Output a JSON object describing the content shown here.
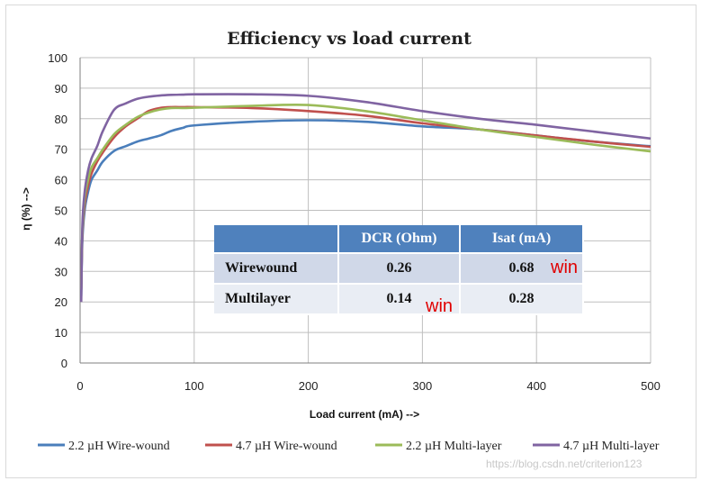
{
  "chart_data": {
    "type": "line",
    "title": "Efficiency vs load current",
    "xlabel": "Load current (mA) -->",
    "ylabel": "η (%) -->",
    "xlim": [
      0,
      500
    ],
    "ylim": [
      0,
      100
    ],
    "xticks": [
      0,
      100,
      200,
      300,
      400,
      500
    ],
    "yticks": [
      0,
      10,
      20,
      30,
      40,
      50,
      60,
      70,
      80,
      90,
      100
    ],
    "grid": true,
    "legend_position": "bottom",
    "series": [
      {
        "name": "2.2 µH Wire-wound",
        "color": "#4a7ebb",
        "x": [
          1,
          2,
          4,
          7,
          10,
          15,
          20,
          30,
          40,
          50,
          60,
          70,
          80,
          90,
          100,
          150,
          200,
          250,
          300,
          350,
          400,
          450,
          500
        ],
        "y": [
          22,
          40,
          50,
          56,
          60,
          63,
          66,
          69.5,
          71,
          72.5,
          73.5,
          74.5,
          76,
          77,
          77.8,
          79,
          79.5,
          79,
          77.5,
          76.5,
          74.5,
          72.5,
          71
        ]
      },
      {
        "name": "4.7 µH Wire-wound",
        "color": "#c0504d",
        "x": [
          1,
          2,
          4,
          7,
          10,
          15,
          20,
          30,
          40,
          50,
          60,
          70,
          80,
          90,
          100,
          150,
          200,
          250,
          300,
          350,
          400,
          450,
          500
        ],
        "y": [
          24,
          42,
          52,
          58,
          62,
          66,
          69,
          74,
          77.5,
          80,
          82.5,
          83.5,
          83.8,
          83.8,
          83.8,
          83.5,
          82.5,
          81,
          78.5,
          76.5,
          74.5,
          72.5,
          70.8
        ]
      },
      {
        "name": "2.2 µH Multi-layer",
        "color": "#9bbb59",
        "x": [
          1,
          2,
          4,
          7,
          10,
          15,
          20,
          30,
          40,
          50,
          60,
          70,
          80,
          90,
          100,
          150,
          200,
          250,
          300,
          350,
          400,
          450,
          500
        ],
        "y": [
          24,
          43,
          54,
          60,
          64,
          67,
          70,
          75,
          78,
          80.5,
          82,
          83,
          83.5,
          83.5,
          83.6,
          84.2,
          84.5,
          82.5,
          79.5,
          76.5,
          74,
          71.5,
          69.3
        ]
      },
      {
        "name": "4.7 µH Multi-layer",
        "color": "#8064a2",
        "x": [
          1,
          2,
          4,
          7,
          10,
          15,
          20,
          30,
          40,
          50,
          60,
          70,
          80,
          90,
          100,
          150,
          200,
          250,
          300,
          350,
          400,
          450,
          500
        ],
        "y": [
          20,
          45,
          56,
          63,
          67,
          71,
          76,
          83,
          85,
          86.5,
          87.2,
          87.6,
          87.8,
          87.9,
          88,
          88,
          87.5,
          85.5,
          82.5,
          80,
          78,
          75.8,
          73.5
        ]
      }
    ]
  },
  "table": {
    "headers": [
      "",
      "DCR (Ohm)",
      "Isat (mA)"
    ],
    "rows": [
      {
        "label": "Wirewound",
        "dcr": "0.26",
        "isat": "0.68"
      },
      {
        "label": "Multilayer",
        "dcr": "0.14",
        "isat": "0.28"
      }
    ],
    "annotations": {
      "isat_wirewound": "win",
      "dcr_multilayer": "win"
    }
  },
  "watermark": {
    "text": "https://blog.csdn.net/criterion123"
  },
  "colors": {
    "grid": "#bfbfbf",
    "table_header": "#4f81bd",
    "annotation": "#e00000"
  }
}
